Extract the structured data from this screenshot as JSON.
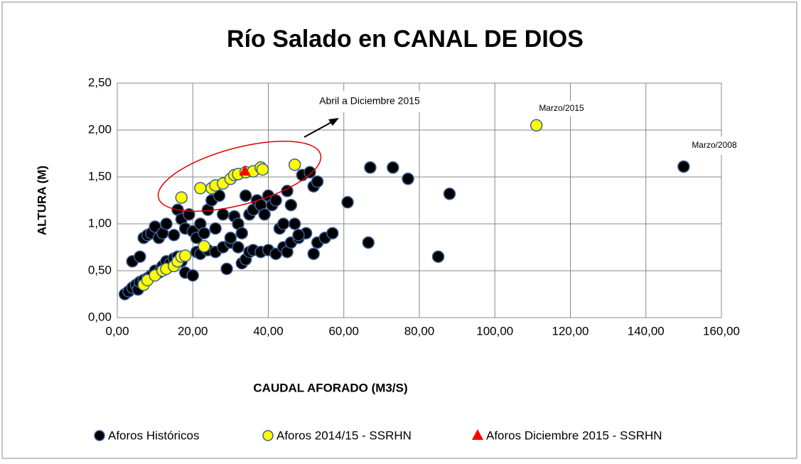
{
  "chart_data": {
    "type": "scatter",
    "title": "Río Salado en CANAL DE DIOS",
    "xlabel": "CAUDAL AFORADO (M3/S)",
    "ylabel": "ALTURA (M)",
    "annotations": [
      "Abril a Diciembre 2015",
      "Marzo/2015",
      "Marzo/2008"
    ],
    "xlim": [
      0,
      160
    ],
    "xticks": [
      {
        "value": 0,
        "label": "0,00"
      },
      {
        "value": 20,
        "label": "20,00"
      },
      {
        "value": 40,
        "label": "40,00"
      },
      {
        "value": 60,
        "label": "60,00"
      },
      {
        "value": 80,
        "label": "80,00"
      },
      {
        "value": 100,
        "label": "100,00"
      },
      {
        "value": 120,
        "label": "120,00"
      },
      {
        "value": 140,
        "label": "140,00"
      },
      {
        "value": 160,
        "label": "160,00"
      }
    ],
    "ylim": [
      0,
      2.5
    ],
    "yticks": [
      {
        "value": 0,
        "label": "0,00"
      },
      {
        "value": 0.5,
        "label": "0,50"
      },
      {
        "value": 1,
        "label": "1,00"
      },
      {
        "value": 1.5,
        "label": "1,50"
      },
      {
        "value": 2,
        "label": "2,00"
      },
      {
        "value": 2.5,
        "label": "2,50"
      }
    ],
    "grid": true,
    "legend": "bottom",
    "series": [
      {
        "name": "Aforos Históricos",
        "color": "#000000",
        "marker": "circle",
        "x": [
          2,
          3,
          4,
          5,
          5.5,
          6,
          7,
          8,
          9,
          10,
          11,
          12,
          13,
          14,
          15,
          16,
          17,
          18,
          20,
          21,
          22,
          24,
          26,
          28,
          29,
          30,
          32,
          33,
          34,
          35,
          36,
          38,
          40,
          42,
          44,
          45,
          46,
          48,
          50,
          52,
          53,
          55,
          57,
          66.5,
          85,
          4,
          6,
          7,
          8,
          9,
          10,
          11,
          12,
          13,
          15,
          16,
          17,
          18,
          19,
          20,
          21,
          22,
          23,
          24,
          25,
          26,
          27,
          28,
          30,
          31,
          32,
          33,
          34,
          35,
          36,
          37,
          38,
          39,
          40,
          41,
          42,
          43,
          44,
          45,
          46,
          47,
          48,
          49,
          51,
          52,
          53,
          61,
          67,
          73,
          77,
          88,
          150
        ],
        "values": [
          0.25,
          0.28,
          0.32,
          0.35,
          0.3,
          0.38,
          0.4,
          0.42,
          0.45,
          0.5,
          0.48,
          0.55,
          0.6,
          0.58,
          0.63,
          0.65,
          0.6,
          0.48,
          0.45,
          0.7,
          0.68,
          0.72,
          0.7,
          0.75,
          0.52,
          0.8,
          0.75,
          0.58,
          0.62,
          0.7,
          0.72,
          0.7,
          0.72,
          0.68,
          0.75,
          0.7,
          0.8,
          0.85,
          0.9,
          0.68,
          0.8,
          0.85,
          0.9,
          0.8,
          0.65,
          0.6,
          0.65,
          0.85,
          0.88,
          0.9,
          0.97,
          0.85,
          0.9,
          1.0,
          0.88,
          1.15,
          1.05,
          0.95,
          1.1,
          0.92,
          0.85,
          1.0,
          0.9,
          1.15,
          1.25,
          0.95,
          1.3,
          1.1,
          0.85,
          1.08,
          1.0,
          0.9,
          1.3,
          1.1,
          1.15,
          1.25,
          1.2,
          1.1,
          1.3,
          1.2,
          1.25,
          0.95,
          1.0,
          1.35,
          1.2,
          1.0,
          0.88,
          1.52,
          1.55,
          1.4,
          1.45,
          1.23,
          1.6,
          1.6,
          1.48,
          1.32,
          1.61
        ]
      },
      {
        "name": "Aforos 2014/15 - SSRHN",
        "color": "#ffff00",
        "marker": "circle",
        "x": [
          7,
          8,
          10,
          12,
          13,
          15,
          16,
          17,
          18,
          23,
          17,
          22,
          25,
          26,
          28,
          30,
          31,
          32,
          34,
          36,
          38,
          38.5,
          47,
          111
        ],
        "values": [
          0.35,
          0.4,
          0.45,
          0.5,
          0.52,
          0.55,
          0.6,
          0.65,
          0.66,
          0.76,
          1.28,
          1.38,
          1.38,
          1.41,
          1.43,
          1.48,
          1.52,
          1.53,
          1.55,
          1.56,
          1.6,
          1.58,
          1.63,
          2.05
        ]
      },
      {
        "name": "Aforos Diciembre 2015 - SSRHN",
        "color": "#ff0000",
        "marker": "triangle",
        "x": [
          33.8
        ],
        "values": [
          1.56
        ]
      }
    ]
  }
}
